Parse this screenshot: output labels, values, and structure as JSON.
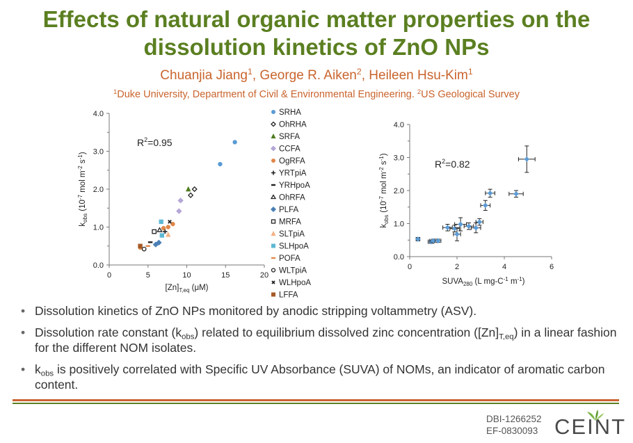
{
  "header": {
    "title_line1": "Effects of natural organic matter properties on the",
    "title_line2": "dissolution kinetics of ZnO NPs",
    "authors": [
      {
        "name": "Chuanjia Jiang",
        "sup": "1",
        "sep": ", "
      },
      {
        "name": "George R. Aiken",
        "sup": "2",
        "sep": ", "
      },
      {
        "name": "Heileen Hsu-Kim",
        "sup": "1",
        "sep": ""
      }
    ],
    "affil_sup1": "1",
    "affil1": "Duke University, Department of Civil & Environmental Engineering. ",
    "affil_sup2": "2",
    "affil2": "US Geological Survey"
  },
  "colors": {
    "title_green": "#5b7f21",
    "author_orange": "#c9642d",
    "point_blue": "#5b9bd5",
    "logo_green": "#7ab648"
  },
  "chart_data": [
    {
      "type": "scatter",
      "title": "",
      "xlabel": "[Zn]",
      "xlabel_sub": "T,eq",
      "xlabel_unit": " (μM)",
      "ylabel": "k",
      "ylabel_sub": "obs",
      "ylabel_unit_parts": [
        " (10",
        "-7",
        " mol m",
        "-2",
        " s",
        "-1",
        ")"
      ],
      "xlim": [
        0,
        20
      ],
      "ylim": [
        0,
        4.0
      ],
      "x_ticks": [
        "0",
        "5",
        "10",
        "15",
        "20"
      ],
      "y_ticks": [
        "0.0",
        "1.0",
        "2.0",
        "3.0",
        "4.0"
      ],
      "annotation": {
        "pre": "R",
        "sup": "2",
        "post": "=0.95"
      },
      "legend_position": "right",
      "series": [
        {
          "name": "SRHA",
          "marker": "circle",
          "color": "#5b9bd5",
          "points": [
            [
              14.3,
              2.66
            ],
            [
              16.2,
              3.24
            ]
          ]
        },
        {
          "name": "OhRHA",
          "marker": "diamond-open",
          "color": "#222222",
          "points": [
            [
              11.0,
              2.0
            ],
            [
              10.5,
              1.84
            ]
          ]
        },
        {
          "name": "SRFA",
          "marker": "triangle",
          "color": "#4e7a1e",
          "points": [
            [
              10.2,
              2.0
            ]
          ]
        },
        {
          "name": "CCFA",
          "marker": "diamond",
          "color": "#b4a7d6",
          "points": [
            [
              9.2,
              1.7
            ],
            [
              9.0,
              1.42
            ]
          ]
        },
        {
          "name": "OgRFA",
          "marker": "circle",
          "color": "#e0874a",
          "points": [
            [
              7.6,
              1.0
            ],
            [
              8.2,
              1.08
            ],
            [
              7.0,
              0.97
            ],
            [
              4.0,
              0.46
            ]
          ]
        },
        {
          "name": "YRTpiA",
          "marker": "plus",
          "color": "#222222",
          "points": [
            [
              7.2,
              0.88
            ]
          ]
        },
        {
          "name": "YRHpoA",
          "marker": "dash",
          "color": "#222222",
          "points": [
            [
              5.3,
              0.6
            ]
          ]
        },
        {
          "name": "OhRFA",
          "marker": "triangle-open",
          "color": "#222222",
          "points": [
            [
              6.5,
              0.92
            ]
          ]
        },
        {
          "name": "PLFA",
          "marker": "diamond",
          "color": "#4a7fb5",
          "points": [
            [
              6.4,
              0.59
            ],
            [
              6.0,
              0.54
            ]
          ]
        },
        {
          "name": "MRFA",
          "marker": "square-open",
          "color": "#222222",
          "points": [
            [
              5.8,
              0.88
            ]
          ]
        },
        {
          "name": "SLTpiA",
          "marker": "triangle",
          "color": "#f4b183",
          "points": [
            [
              7.6,
              0.8
            ]
          ]
        },
        {
          "name": "SLHpoA",
          "marker": "square",
          "color": "#5fb8d4",
          "points": [
            [
              6.7,
              1.14
            ],
            [
              6.8,
              0.78
            ]
          ]
        },
        {
          "name": "POFA",
          "marker": "dash",
          "color": "#e0874a",
          "points": [
            [
              5.0,
              0.5
            ]
          ]
        },
        {
          "name": "WLTpiA",
          "marker": "circle-open",
          "color": "#222222",
          "points": [
            [
              4.5,
              0.42
            ]
          ]
        },
        {
          "name": "WLHpoA",
          "marker": "x",
          "color": "#222222",
          "points": [
            [
              7.8,
              1.14
            ]
          ]
        },
        {
          "name": "LFFA",
          "marker": "square",
          "color": "#a65a26",
          "points": [
            [
              4.0,
              0.5
            ]
          ]
        }
      ]
    },
    {
      "type": "scatter",
      "title": "",
      "xlabel": "SUVA",
      "xlabel_sub": "280",
      "xlabel_unit_parts": [
        " (L mg-C",
        "-1",
        " m",
        "-1",
        ")"
      ],
      "ylabel": "k",
      "ylabel_sub": "obs",
      "ylabel_unit_parts": [
        " (10",
        "-7",
        " mol m",
        "-2",
        " s",
        "-1",
        ")"
      ],
      "xlim": [
        0,
        6
      ],
      "ylim": [
        0,
        4.0
      ],
      "x_ticks": [
        "0",
        "2",
        "4",
        "6"
      ],
      "y_ticks": [
        "0.0",
        "1.0",
        "2.0",
        "3.0",
        "4.0"
      ],
      "annotation": {
        "pre": "R",
        "sup": "2",
        "post": "=0.82"
      },
      "points": [
        {
          "x": 0.35,
          "y": 0.53,
          "xerr": 0.08,
          "yerr": 0.05
        },
        {
          "x": 0.9,
          "y": 0.45,
          "xerr": 0.12,
          "yerr": 0.05
        },
        {
          "x": 1.0,
          "y": 0.48,
          "xerr": 0.15,
          "yerr": 0.05
        },
        {
          "x": 1.2,
          "y": 0.48,
          "xerr": 0.12,
          "yerr": 0.05
        },
        {
          "x": 1.6,
          "y": 0.88,
          "xerr": 0.2,
          "yerr": 0.1
        },
        {
          "x": 1.9,
          "y": 0.85,
          "xerr": 0.2,
          "yerr": 0.1
        },
        {
          "x": 2.0,
          "y": 0.68,
          "xerr": 0.15,
          "yerr": 0.2
        },
        {
          "x": 2.15,
          "y": 0.98,
          "xerr": 0.25,
          "yerr": 0.2
        },
        {
          "x": 2.5,
          "y": 0.92,
          "xerr": 0.2,
          "yerr": 0.1
        },
        {
          "x": 2.8,
          "y": 0.87,
          "xerr": 0.2,
          "yerr": 0.15
        },
        {
          "x": 2.95,
          "y": 1.05,
          "xerr": 0.15,
          "yerr": 0.1
        },
        {
          "x": 3.2,
          "y": 1.55,
          "xerr": 0.2,
          "yerr": 0.15
        },
        {
          "x": 3.4,
          "y": 1.92,
          "xerr": 0.2,
          "yerr": 0.12
        },
        {
          "x": 4.5,
          "y": 1.9,
          "xerr": 0.3,
          "yerr": 0.1
        },
        {
          "x": 4.95,
          "y": 2.95,
          "xerr": 0.35,
          "yerr": 0.4
        }
      ]
    }
  ],
  "bullets": {
    "b1": "Dissolution kinetics of ZnO NPs monitored by anodic stripping voltammetry (ASV).",
    "b2_a": "Dissolution rate constant (k",
    "b2_sub1": "obs",
    "b2_b": ") related to equilibrium dissolved zinc concentration ([Zn]",
    "b2_sub2": "T,eq",
    "b2_c": ") in a linear fashion for the different NOM isolates.",
    "b3_a": "k",
    "b3_sub": "obs",
    "b3_b": " is positively correlated with Specific UV Absorbance (SUVA) of NOMs, an indicator of aromatic carbon content."
  },
  "footer": {
    "grant1": "DBI-1266252",
    "grant2": "EF-0830093",
    "logo_text": "CEINT"
  }
}
